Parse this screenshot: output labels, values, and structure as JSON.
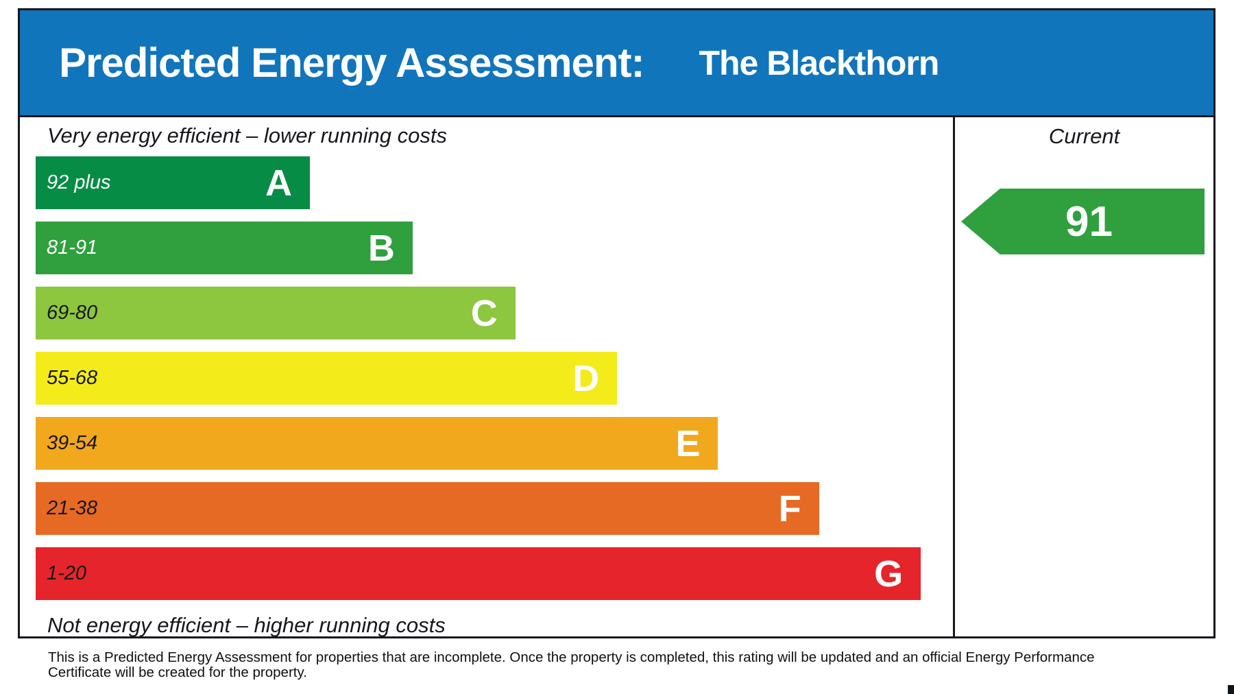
{
  "header": {
    "title": "Predicted Energy Assessment:",
    "property_name": "The Blackthorn",
    "background_color": "#1175bc"
  },
  "chart_data": {
    "type": "bar",
    "title": "Predicted Energy Assessment: The Blackthorn",
    "top_caption": "Very energy efficient – lower running costs",
    "bottom_caption": "Not energy efficient – higher running costs",
    "legend_position": "right-column",
    "current_column_label": "Current",
    "current_value": 91,
    "current_band": "B",
    "current_arrow_color": "#2fa03d",
    "bands": [
      {
        "letter": "A",
        "range": "92 plus",
        "color": "#078c45",
        "label_color": "#ffffff",
        "width_pct": 29.9
      },
      {
        "letter": "B",
        "range": "81-91",
        "color": "#2fa03d",
        "label_color": "#ffffff",
        "width_pct": 41.1
      },
      {
        "letter": "C",
        "range": "69-80",
        "color": "#8dc63f",
        "label_color": "#17171c",
        "width_pct": 52.3
      },
      {
        "letter": "D",
        "range": "55-68",
        "color": "#f3ec1a",
        "label_color": "#17171c",
        "width_pct": 63.4
      },
      {
        "letter": "E",
        "range": "39-54",
        "color": "#f2a81d",
        "label_color": "#17171c",
        "width_pct": 74.4
      },
      {
        "letter": "F",
        "range": "21-38",
        "color": "#e76a24",
        "label_color": "#17171c",
        "width_pct": 85.4
      },
      {
        "letter": "G",
        "range": "1-20",
        "color": "#e5252b",
        "label_color": "#17171c",
        "width_pct": 96.5
      }
    ]
  },
  "footer": {
    "line1": "This is a Predicted Energy Assessment for properties that are incomplete. Once the property is completed, this rating will be updated and an official Energy Performance",
    "line2": "Certificate will be created for the property."
  }
}
